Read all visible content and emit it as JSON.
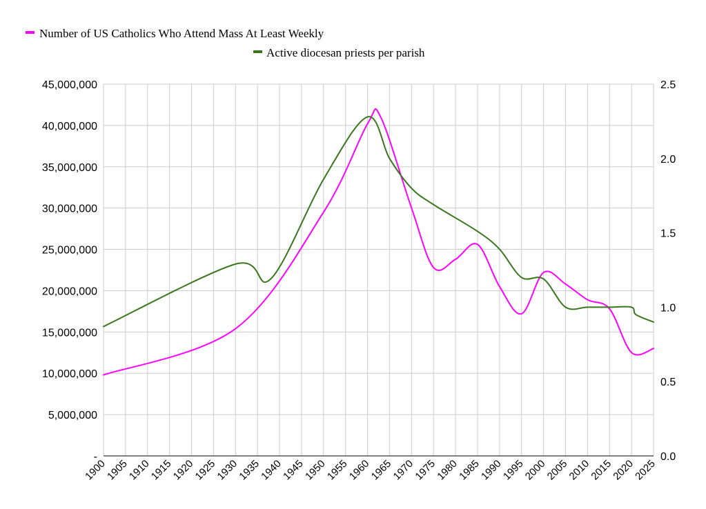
{
  "chart_data": {
    "type": "line",
    "title": "",
    "xlabel": "",
    "ylabel": "",
    "xlim": [
      1900,
      2025
    ],
    "ylim": [
      0,
      45000000
    ],
    "y2lim": [
      0,
      2.5
    ],
    "grid": true,
    "legend_position": "top",
    "x_ticks": [
      "1900",
      "1905",
      "1910",
      "1915",
      "1920",
      "1925",
      "1930",
      "1935",
      "1940",
      "1945",
      "1950",
      "1955",
      "1960",
      "1965",
      "1970",
      "1975",
      "1980",
      "1985",
      "1990",
      "1995",
      "2000",
      "2005",
      "2010",
      "2015",
      "2020",
      "2025"
    ],
    "y_ticks": [
      "-",
      "5,000,000",
      "10,000,000",
      "15,000,000",
      "20,000,000",
      "25,000,000",
      "30,000,000",
      "35,000,000",
      "40,000,000",
      "45,000,000"
    ],
    "y2_ticks": [
      "0.0",
      "0.5",
      "1.0",
      "1.5",
      "2.0",
      "2.5"
    ],
    "series": [
      {
        "name": "Number of US Catholics Who Attend Mass At Least Weekly",
        "color": "#ff00ff",
        "axis": "left",
        "x": [
          1900,
          1930,
          1950,
          1960,
          1963,
          1970,
          1975,
          1980,
          1985,
          1990,
          1995,
          2000,
          2005,
          2010,
          2015,
          2020,
          2025
        ],
        "y": [
          9800000,
          15400000,
          29500000,
          40200000,
          41000000,
          30000000,
          22800000,
          23800000,
          25600000,
          20500000,
          17200000,
          22200000,
          20800000,
          18900000,
          17800000,
          12500000,
          13000000
        ]
      },
      {
        "name": "Active diocesan priests per parish",
        "color": "#38761d",
        "axis": "right",
        "x": [
          1900,
          1930,
          1938,
          1950,
          1960,
          1965,
          1970,
          1975,
          1985,
          1990,
          1995,
          2000,
          2005,
          2010,
          2015,
          2020,
          2021,
          2025
        ],
        "y": [
          0.87,
          1.29,
          1.19,
          1.86,
          2.28,
          2.0,
          1.8,
          1.69,
          1.51,
          1.39,
          1.2,
          1.19,
          1.0,
          1.0,
          1.0,
          1.0,
          0.95,
          0.9
        ]
      }
    ]
  }
}
